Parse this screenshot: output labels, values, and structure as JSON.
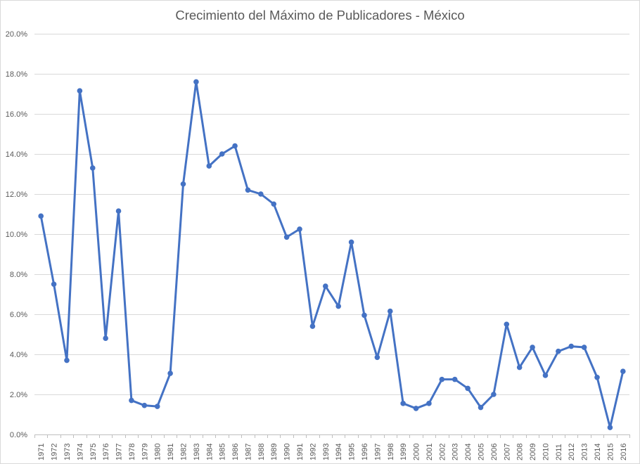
{
  "chart_data": {
    "type": "line",
    "title": "Crecimiento del Máximo de Publicadores - México",
    "xlabel": "",
    "ylabel": "",
    "ylim": [
      0,
      20
    ],
    "y_tick_values": [
      0,
      2,
      4,
      6,
      8,
      10,
      12,
      14,
      16,
      18,
      20
    ],
    "y_tick_labels": [
      "0.0%",
      "2.0%",
      "4.0%",
      "6.0%",
      "8.0%",
      "10.0%",
      "12.0%",
      "14.0%",
      "16.0%",
      "18.0%",
      "20.0%"
    ],
    "y_unit": "%",
    "grid": true,
    "legend": "none",
    "categories": [
      "1971",
      "1972",
      "1973",
      "1974",
      "1975",
      "1976",
      "1977",
      "1978",
      "1979",
      "1980",
      "1981",
      "1982",
      "1983",
      "1984",
      "1985",
      "1986",
      "1987",
      "1988",
      "1989",
      "1990",
      "1991",
      "1992",
      "1993",
      "1994",
      "1995",
      "1996",
      "1997",
      "1998",
      "1999",
      "2000",
      "2001",
      "2002",
      "2003",
      "2004",
      "2005",
      "2006",
      "2007",
      "2008",
      "2009",
      "2010",
      "2011",
      "2012",
      "2013",
      "2014",
      "2015",
      "2016"
    ],
    "series": [
      {
        "color": "#4472c4",
        "values": [
          10.9,
          7.5,
          3.7,
          17.15,
          13.3,
          4.8,
          11.15,
          1.7,
          1.45,
          1.4,
          3.05,
          12.5,
          17.6,
          13.4,
          14.0,
          14.4,
          12.2,
          12.0,
          11.5,
          9.85,
          10.25,
          5.4,
          7.4,
          6.4,
          9.6,
          5.95,
          3.85,
          6.15,
          1.55,
          1.3,
          1.55,
          2.75,
          2.75,
          2.3,
          1.35,
          2.0,
          5.5,
          3.35,
          4.35,
          2.95,
          4.15,
          4.4,
          4.35,
          2.85,
          0.35,
          3.15
        ]
      }
    ]
  }
}
